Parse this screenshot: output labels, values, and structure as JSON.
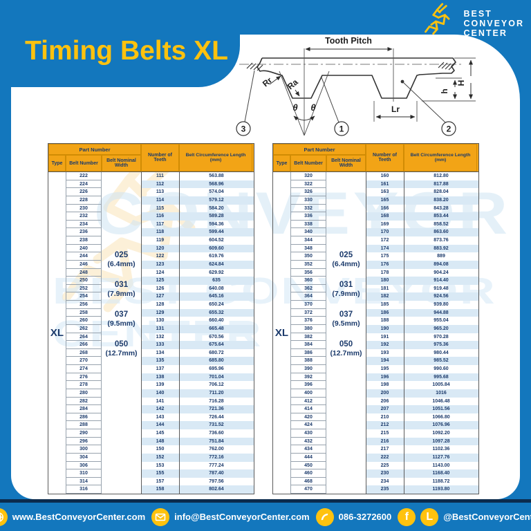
{
  "title": "Timing Belts XL",
  "logo": {
    "name_line1": "BEST",
    "name_line2": "CONVEYOR",
    "name_line3": "CENTER"
  },
  "diagram": {
    "tooth_pitch_label": "Tooth Pitch",
    "rr_label": "Rr",
    "ra_label": "Ra",
    "theta_left": "θ",
    "theta_right": "θ",
    "lr_label": "Lr",
    "height_label": "H",
    "tooth_height_label": "h",
    "callout_1": "1",
    "callout_2": "2",
    "callout_3": "3"
  },
  "table_headers": {
    "part_number": "Part Number",
    "type": "Type",
    "belt_number": "Belt Number",
    "belt_nominal_width": "Belt Nominal Width",
    "number_of_teeth": "Number of Teeth",
    "belt_circumference_length": "Belt Circumference Length (mm)"
  },
  "type_value": "XL",
  "belt_widths": [
    {
      "code": "025",
      "mm": "(6.4mm)"
    },
    {
      "code": "031",
      "mm": "(7.9mm)"
    },
    {
      "code": "037",
      "mm": "(9.5mm)"
    },
    {
      "code": "050",
      "mm": "(12.7mm)"
    }
  ],
  "left_table_rows": [
    [
      "222",
      "111",
      "563.88"
    ],
    [
      "224",
      "112",
      "568.96"
    ],
    [
      "226",
      "113",
      "574.04"
    ],
    [
      "228",
      "114",
      "579.12"
    ],
    [
      "230",
      "115",
      "584.20"
    ],
    [
      "232",
      "116",
      "589.28"
    ],
    [
      "234",
      "117",
      "594.36"
    ],
    [
      "236",
      "118",
      "599.44"
    ],
    [
      "238",
      "119",
      "604.52"
    ],
    [
      "240",
      "120",
      "609.60"
    ],
    [
      "244",
      "122",
      "619.76"
    ],
    [
      "246",
      "123",
      "624.84"
    ],
    [
      "248",
      "124",
      "629.92"
    ],
    [
      "250",
      "125",
      "635"
    ],
    [
      "252",
      "126",
      "640.08"
    ],
    [
      "254",
      "127",
      "645.16"
    ],
    [
      "256",
      "128",
      "650.24"
    ],
    [
      "258",
      "129",
      "655.32"
    ],
    [
      "260",
      "130",
      "660.40"
    ],
    [
      "262",
      "131",
      "665.48"
    ],
    [
      "264",
      "132",
      "670.56"
    ],
    [
      "266",
      "133",
      "675.64"
    ],
    [
      "268",
      "134",
      "680.72"
    ],
    [
      "270",
      "135",
      "685.80"
    ],
    [
      "274",
      "137",
      "695.96"
    ],
    [
      "276",
      "138",
      "701.04"
    ],
    [
      "278",
      "139",
      "706.12"
    ],
    [
      "280",
      "140",
      "711.20"
    ],
    [
      "282",
      "141",
      "716.28"
    ],
    [
      "284",
      "142",
      "721.36"
    ],
    [
      "286",
      "143",
      "726.44"
    ],
    [
      "288",
      "144",
      "731.52"
    ],
    [
      "290",
      "145",
      "736.60"
    ],
    [
      "296",
      "148",
      "751.84"
    ],
    [
      "300",
      "150",
      "762.00"
    ],
    [
      "304",
      "152",
      "772.16"
    ],
    [
      "306",
      "153",
      "777.24"
    ],
    [
      "310",
      "155",
      "787.40"
    ],
    [
      "314",
      "157",
      "797.56"
    ],
    [
      "316",
      "158",
      "802.64"
    ]
  ],
  "right_table_rows": [
    [
      "320",
      "160",
      "812.80"
    ],
    [
      "322",
      "161",
      "817.88"
    ],
    [
      "326",
      "163",
      "828.04"
    ],
    [
      "330",
      "165",
      "838.20"
    ],
    [
      "332",
      "166",
      "843.28"
    ],
    [
      "336",
      "168",
      "853.44"
    ],
    [
      "338",
      "169",
      "858.52"
    ],
    [
      "340",
      "170",
      "863.60"
    ],
    [
      "344",
      "172",
      "873.76"
    ],
    [
      "348",
      "174",
      "883.92"
    ],
    [
      "350",
      "175",
      "889"
    ],
    [
      "352",
      "176",
      "894.08"
    ],
    [
      "356",
      "178",
      "904.24"
    ],
    [
      "360",
      "180",
      "914.40"
    ],
    [
      "362",
      "181",
      "919.48"
    ],
    [
      "364",
      "182",
      "924.56"
    ],
    [
      "370",
      "185",
      "939.80"
    ],
    [
      "372",
      "186",
      "944.88"
    ],
    [
      "376",
      "188",
      "955.04"
    ],
    [
      "380",
      "190",
      "965.20"
    ],
    [
      "382",
      "191",
      "970.28"
    ],
    [
      "384",
      "192",
      "975.36"
    ],
    [
      "386",
      "193",
      "980.44"
    ],
    [
      "388",
      "194",
      "985.52"
    ],
    [
      "390",
      "195",
      "990.60"
    ],
    [
      "392",
      "196",
      "995.68"
    ],
    [
      "396",
      "198",
      "1005.84"
    ],
    [
      "400",
      "200",
      "1016"
    ],
    [
      "412",
      "206",
      "1046.48"
    ],
    [
      "414",
      "207",
      "1051.56"
    ],
    [
      "420",
      "210",
      "1066.80"
    ],
    [
      "424",
      "212",
      "1076.96"
    ],
    [
      "430",
      "215",
      "1092.20"
    ],
    [
      "432",
      "216",
      "1097.28"
    ],
    [
      "434",
      "217",
      "1102.36"
    ],
    [
      "444",
      "222",
      "1127.76"
    ],
    [
      "450",
      "225",
      "1143.00"
    ],
    [
      "460",
      "230",
      "1168.40"
    ],
    [
      "468",
      "234",
      "1188.72"
    ],
    [
      "470",
      "235",
      "1193.80"
    ]
  ],
  "watermark": {
    "line1": "CONVEYOR",
    "line2": "BEST CONVEYOR CENTER"
  },
  "footer": {
    "website": "www.BestConveyorCenter.com",
    "email": "info@BestConveyorCenter.com",
    "phone": "086-3272600",
    "social_handle": "@BestConveyorCenter"
  },
  "colors": {
    "page_blue": "#1377BD",
    "accent_yellow": "#FFC20E",
    "header_orange": "#F2A416",
    "navy_text": "#1B3A6B",
    "stripe_blue": "#D9E9F5",
    "footer_dark_strip": "#0B2B4D"
  }
}
